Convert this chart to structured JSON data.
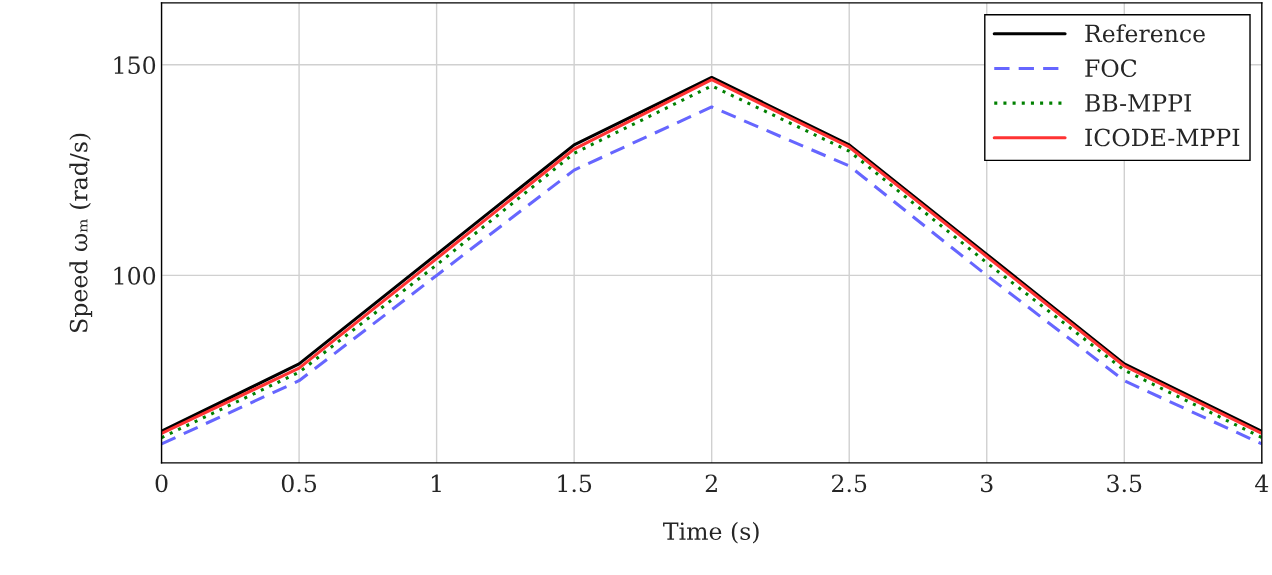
{
  "chart_data": {
    "type": "line",
    "xlabel": "Time (s)",
    "ylabel": "Speed ωₘ (rad/s)",
    "x": [
      0,
      0.5,
      1,
      1.5,
      2,
      2.5,
      3,
      3.5,
      4
    ],
    "series": [
      {
        "name": "Reference",
        "color": "#000000",
        "line_style": "solid",
        "values": [
          63,
          79,
          105,
          131,
          147,
          131,
          105,
          79,
          63
        ]
      },
      {
        "name": "FOC",
        "color": "#6666ff",
        "line_style": "dashed",
        "values": [
          60,
          75,
          100,
          125,
          140,
          126,
          100,
          75,
          60
        ]
      },
      {
        "name": "BB-MPPI",
        "color": "#008000",
        "line_style": "dotted",
        "values": [
          61.5,
          77,
          102.5,
          129,
          145,
          129.5,
          103,
          77.5,
          61.5
        ]
      },
      {
        "name": "ICODE-MPPI",
        "color": "#ff3333",
        "line_style": "solid",
        "values": [
          62.5,
          78,
          104,
          130,
          146.5,
          130.5,
          104.5,
          78.5,
          62.5
        ]
      }
    ],
    "xlim": [
      0,
      4
    ],
    "xticks": [
      0,
      0.5,
      1,
      1.5,
      2,
      2.5,
      3,
      3.5,
      4
    ],
    "ylim": [
      55.5,
      164.7
    ],
    "yticks": [
      100,
      150
    ],
    "grid": true,
    "legend": "top right",
    "marker": "none"
  }
}
